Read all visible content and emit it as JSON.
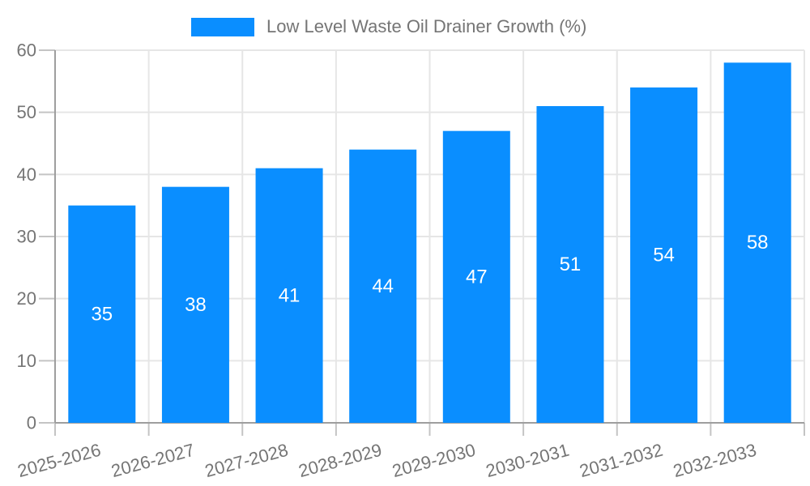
{
  "chart_data": {
    "type": "bar",
    "series_name": "Low Level Waste Oil Drainer Growth (%)",
    "categories": [
      "2025-2026",
      "2026-2027",
      "2027-2028",
      "2028-2029",
      "2029-2030",
      "2030-2031",
      "2031-2032",
      "2032-2033"
    ],
    "values": [
      35,
      38,
      41,
      44,
      47,
      51,
      54,
      58
    ],
    "title": "",
    "xlabel": "",
    "ylabel": "",
    "ylim": [
      0,
      60
    ],
    "ytick_step": 10,
    "ytick_labels": [
      "0",
      "10",
      "20",
      "30",
      "40",
      "50",
      "60"
    ],
    "grid": true,
    "legend_position": "top",
    "x_label_rotation_deg": -15,
    "value_labels_inside_bars": true,
    "colors": {
      "bar": "#0a8eff",
      "bar_value_text": "#ffffff",
      "axis_text": "#757575",
      "axis_line": "#9e9e9e",
      "gridline": "#e6e6e6",
      "tick": "#c4c4c4",
      "background": "#ffffff"
    }
  }
}
